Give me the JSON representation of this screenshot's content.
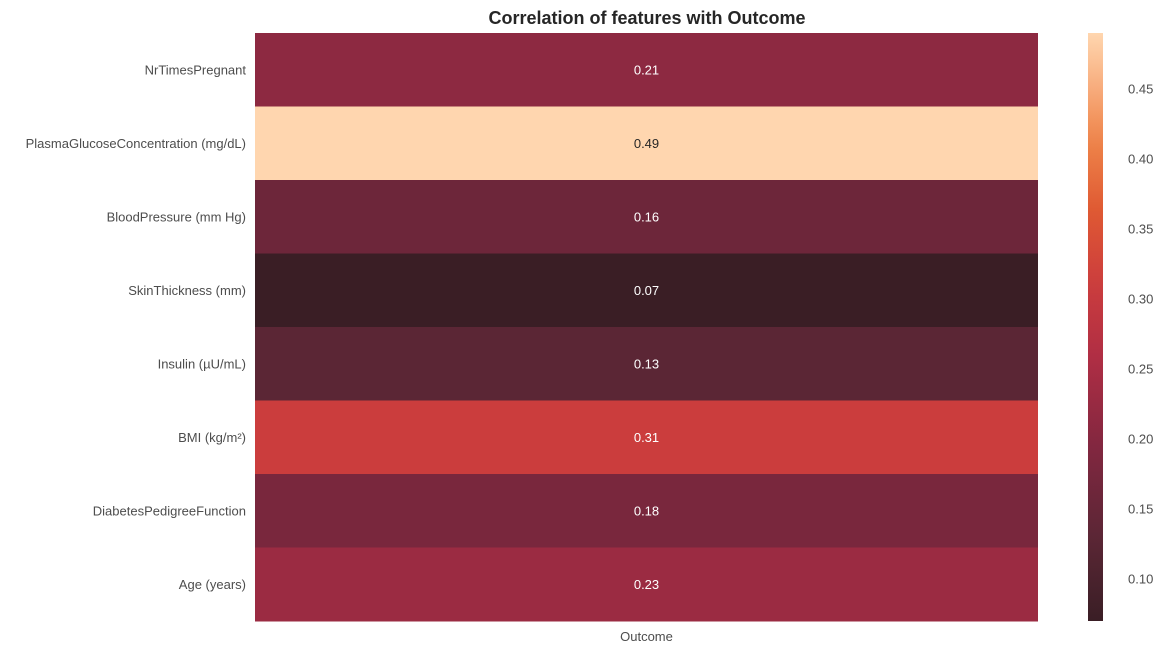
{
  "chart_data": {
    "type": "heatmap",
    "title": "Correlation of features with Outcome",
    "xlabel": "",
    "ylabel": "",
    "columns": [
      "Outcome"
    ],
    "rows": [
      "NrTimesPregnant",
      "PlasmaGlucoseConcentration (mg/dL)",
      "BloodPressure (mm Hg)",
      "SkinThickness (mm)",
      "Insulin (µU/mL)",
      "BMI (kg/m²)",
      "DiabetesPedigreeFunction",
      "Age (years)"
    ],
    "values": [
      0.21,
      0.49,
      0.16,
      0.07,
      0.13,
      0.31,
      0.18,
      0.23
    ],
    "value_labels": [
      "0.21",
      "0.49",
      "0.16",
      "0.07",
      "0.13",
      "0.31",
      "0.18",
      "0.23"
    ],
    "colormap": "rocket",
    "colorbar": {
      "range": [
        0.07,
        0.49
      ],
      "ticks": [
        0.1,
        0.15,
        0.2,
        0.25,
        0.3,
        0.35,
        0.4,
        0.45
      ],
      "tick_labels": [
        "0.10",
        "0.15",
        "0.20",
        "0.25",
        "0.30",
        "0.35",
        "0.40",
        "0.45"
      ]
    },
    "grid": false
  }
}
